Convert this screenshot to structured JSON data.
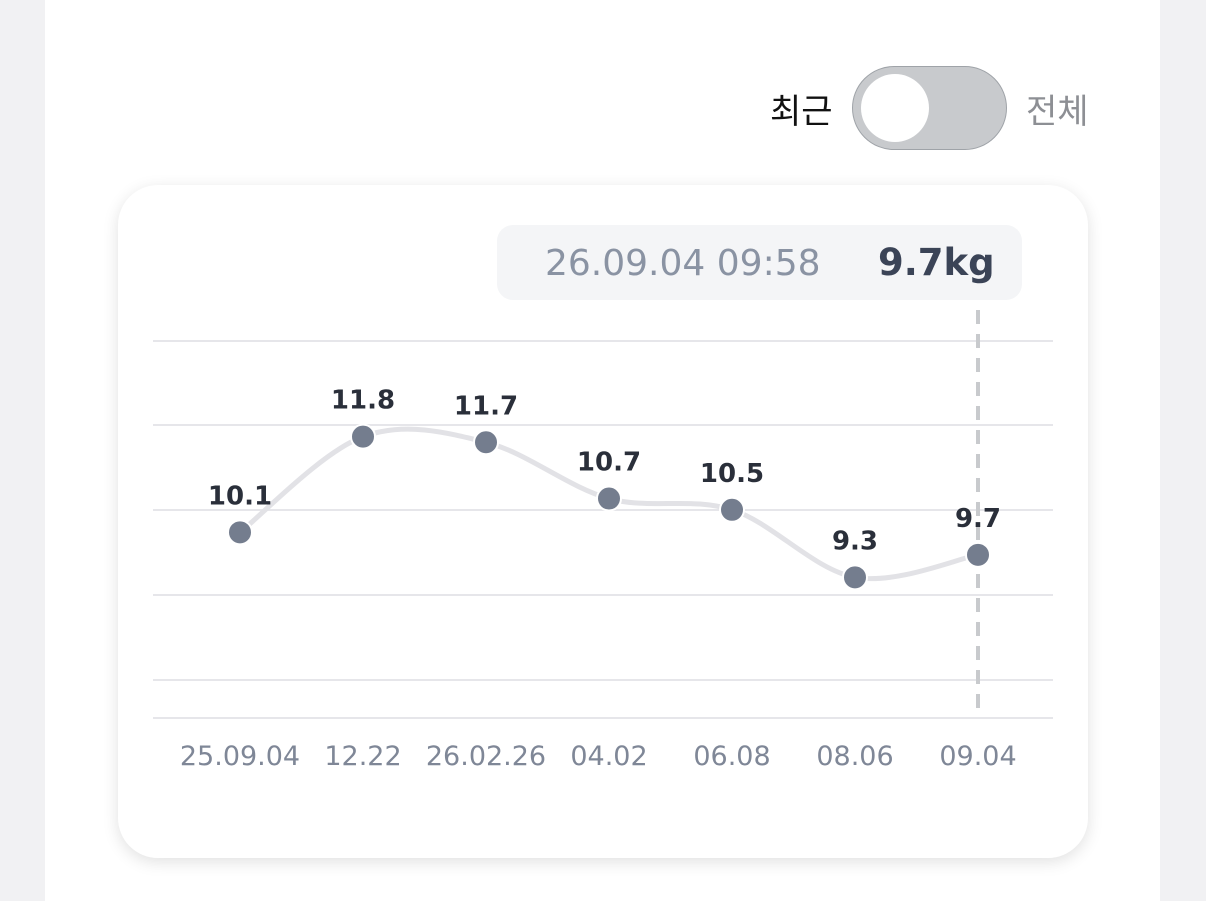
{
  "toggle": {
    "left_label": "최근",
    "right_label": "전체"
  },
  "tooltip": {
    "datetime": "26.09.04 09:58",
    "value": "9.7kg"
  },
  "chart_data": {
    "type": "line",
    "categories": [
      "25.09.04",
      "12.22",
      "26.02.26",
      "04.02",
      "06.08",
      "08.06",
      "09.04"
    ],
    "values": [
      10.1,
      11.8,
      11.7,
      10.7,
      10.5,
      9.3,
      9.7
    ],
    "color": "#747d8e",
    "line_color": "#e2e2e6",
    "ylim": [
      6.8,
      13.5
    ]
  }
}
